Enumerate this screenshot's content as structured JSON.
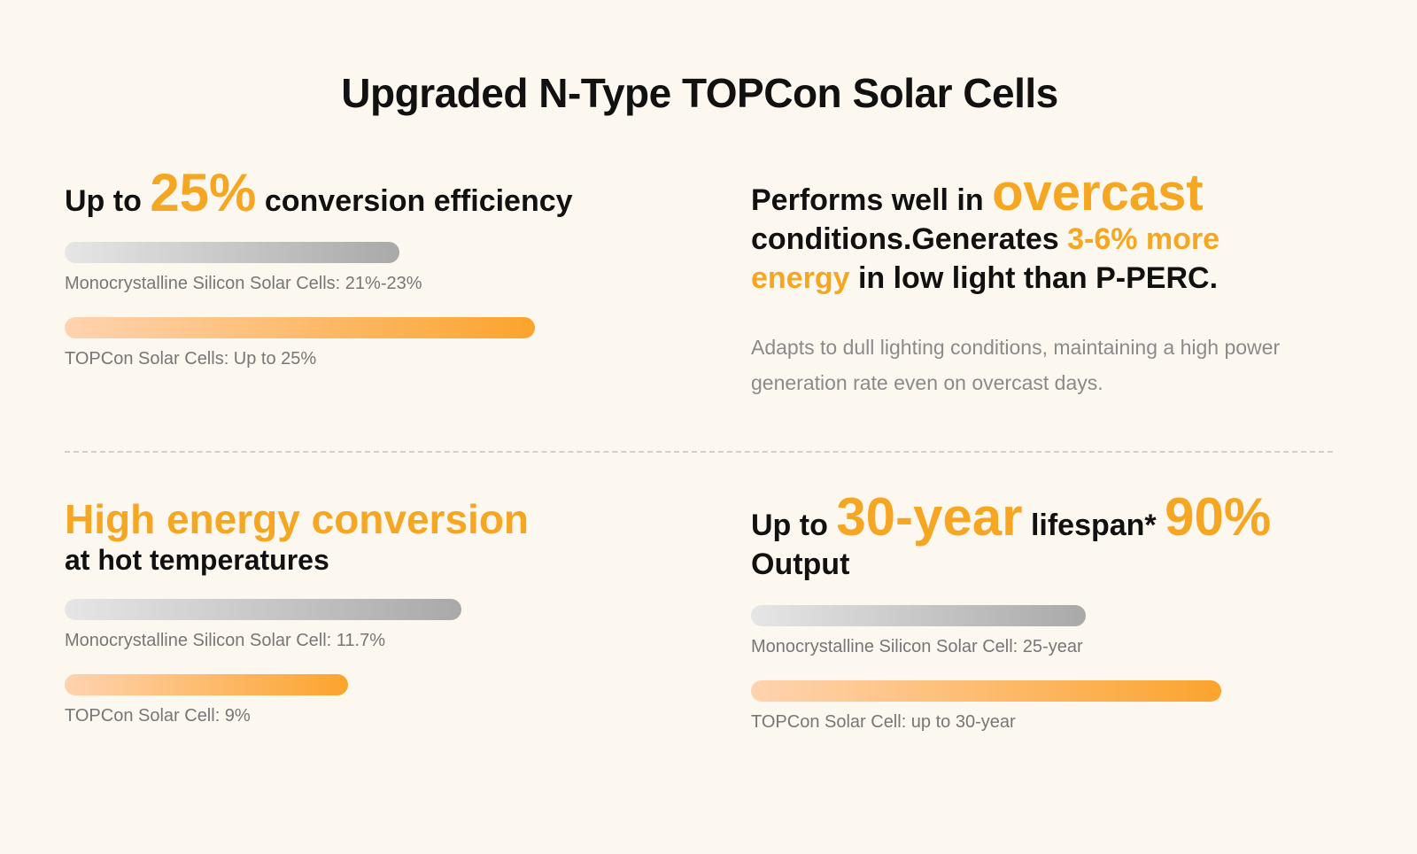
{
  "title": "Upgraded N-Type TOPCon Solar Cells",
  "colors": {
    "accent": "#f5a623",
    "background": "#fdf8ef"
  },
  "efficiency": {
    "prefix": "Up to ",
    "value": "25%",
    "suffix": " conversion efficiency",
    "bars": [
      {
        "label": "Monocrystalline Silicon Solar Cells: 21%-23%",
        "fill": 0.59,
        "style": "grey"
      },
      {
        "label": "TOPCon Solar Cells: Up to 25%",
        "fill": 0.83,
        "style": "orange"
      }
    ]
  },
  "overcast": {
    "line1_prefix": "Performs well in ",
    "line1_highlight": "overcast",
    "line2_prefix": "conditions.Generates ",
    "line2_highlight": "3-6% more",
    "line3_highlight": "energy",
    "line3_suffix": " in low light than P-PERC.",
    "description": "Adapts to dull lighting conditions, maintaining a high power generation rate even on overcast days."
  },
  "temperature": {
    "heading": "High energy conversion",
    "subheading": "at hot temperatures",
    "bars": [
      {
        "label": "Monocrystalline Silicon Solar Cell: 11.7%",
        "fill": 0.7,
        "style": "grey"
      },
      {
        "label": "TOPCon Solar Cell: 9%",
        "fill": 0.5,
        "style": "orange"
      }
    ]
  },
  "lifespan": {
    "prefix": "Up to ",
    "value": "30-year",
    "middle": " lifespan* ",
    "output_value": "90%",
    "line2": "Output",
    "bars": [
      {
        "label": "Monocrystalline Silicon Solar Cell: 25-year",
        "fill": 0.59,
        "style": "grey"
      },
      {
        "label": "TOPCon Solar Cell: up to 30-year",
        "fill": 0.83,
        "style": "orange"
      }
    ]
  }
}
